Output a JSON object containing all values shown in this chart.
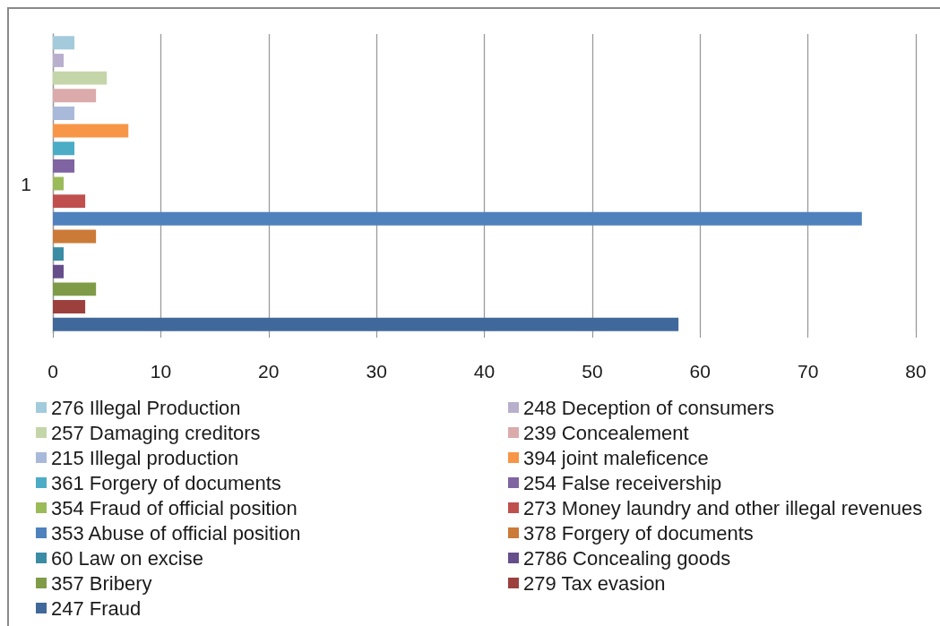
{
  "chart_data": {
    "type": "bar",
    "orientation": "horizontal",
    "stacked": true,
    "categories": [
      null,
      null,
      null,
      null,
      null,
      null,
      null,
      null,
      "1",
      null,
      null,
      null,
      null,
      null,
      null,
      null,
      null
    ],
    "series": [
      {
        "name": "276 Illegal Production",
        "color": "#a3cbdb",
        "values": [
          2,
          null,
          null,
          null,
          null,
          null,
          null,
          null,
          null,
          null,
          null,
          null,
          null,
          null,
          null,
          null,
          null
        ]
      },
      {
        "name": "248 Deception of consumers",
        "color": "#b8afcd",
        "values": [
          null,
          1,
          null,
          null,
          null,
          null,
          null,
          null,
          null,
          null,
          null,
          null,
          null,
          null,
          null,
          null,
          null
        ]
      },
      {
        "name": "257 Damaging creditors",
        "color": "#c4d6a9",
        "values": [
          null,
          null,
          5,
          null,
          null,
          null,
          null,
          null,
          null,
          null,
          null,
          null,
          null,
          null,
          null,
          null,
          null
        ]
      },
      {
        "name": "239 Concealement",
        "color": "#dbaaaa",
        "values": [
          null,
          null,
          null,
          4,
          null,
          null,
          null,
          null,
          null,
          null,
          null,
          null,
          null,
          null,
          null,
          null,
          null
        ]
      },
      {
        "name": "215 Illegal production",
        "color": "#a9b9d9",
        "values": [
          null,
          null,
          null,
          null,
          2,
          null,
          null,
          null,
          null,
          null,
          null,
          null,
          null,
          null,
          null,
          null,
          null
        ]
      },
      {
        "name": "394 joint maleficence",
        "color": "#f79646",
        "values": [
          null,
          null,
          null,
          null,
          null,
          7,
          null,
          null,
          null,
          null,
          null,
          null,
          null,
          null,
          null,
          null,
          null
        ]
      },
      {
        "name": "361 Forgery of documents",
        "color": "#4bacc6",
        "values": [
          null,
          null,
          null,
          null,
          null,
          null,
          2,
          null,
          null,
          null,
          null,
          null,
          null,
          null,
          null,
          null,
          null
        ]
      },
      {
        "name": "254 False receivership",
        "color": "#8064a2",
        "values": [
          null,
          null,
          null,
          null,
          null,
          null,
          null,
          2,
          null,
          null,
          null,
          null,
          null,
          null,
          null,
          null,
          null
        ]
      },
      {
        "name": "354 Fraud of official position",
        "color": "#9bbb59",
        "values": [
          null,
          null,
          null,
          null,
          null,
          null,
          null,
          null,
          1,
          null,
          null,
          null,
          null,
          null,
          null,
          null,
          null
        ]
      },
      {
        "name": "273 Money laundry and other illegal revenues",
        "color": "#c0504d",
        "values": [
          null,
          null,
          null,
          null,
          null,
          null,
          null,
          null,
          null,
          3,
          null,
          null,
          null,
          null,
          null,
          null,
          null
        ]
      },
      {
        "name": "353 Abuse of official position",
        "color": "#4f81bd",
        "values": [
          null,
          null,
          null,
          null,
          null,
          null,
          null,
          null,
          null,
          null,
          75,
          null,
          null,
          null,
          null,
          null,
          null
        ]
      },
      {
        "name": "378 Forgery of documents",
        "color": "#cb7a38",
        "values": [
          null,
          null,
          null,
          null,
          null,
          null,
          null,
          null,
          null,
          null,
          null,
          4,
          null,
          null,
          null,
          null,
          null
        ]
      },
      {
        "name": "60 Law on excise",
        "color": "#3a8ca5",
        "values": [
          null,
          null,
          null,
          null,
          null,
          null,
          null,
          null,
          null,
          null,
          null,
          null,
          1,
          null,
          null,
          null,
          null
        ]
      },
      {
        "name": "2786 Concealing goods",
        "color": "#654e8a",
        "values": [
          null,
          null,
          null,
          null,
          null,
          null,
          null,
          null,
          null,
          null,
          null,
          null,
          null,
          1,
          null,
          null,
          null
        ]
      },
      {
        "name": "357 Bribery",
        "color": "#7f9b48",
        "values": [
          null,
          null,
          null,
          null,
          null,
          null,
          null,
          null,
          null,
          null,
          null,
          null,
          null,
          null,
          4,
          null,
          null
        ]
      },
      {
        "name": "279 Tax evasion",
        "color": "#9c403e",
        "values": [
          null,
          null,
          null,
          null,
          null,
          null,
          null,
          null,
          null,
          null,
          null,
          null,
          null,
          null,
          null,
          3,
          null
        ]
      },
      {
        "name": "247 Fraud",
        "color": "#40689b",
        "values": [
          null,
          null,
          null,
          null,
          null,
          null,
          null,
          null,
          null,
          null,
          null,
          null,
          null,
          null,
          null,
          null,
          58
        ]
      }
    ],
    "xlim": [
      0,
      80
    ],
    "xticks": [
      0,
      10,
      20,
      30,
      40,
      50,
      60,
      70,
      80
    ],
    "grid": "x",
    "legend": "bottom"
  }
}
